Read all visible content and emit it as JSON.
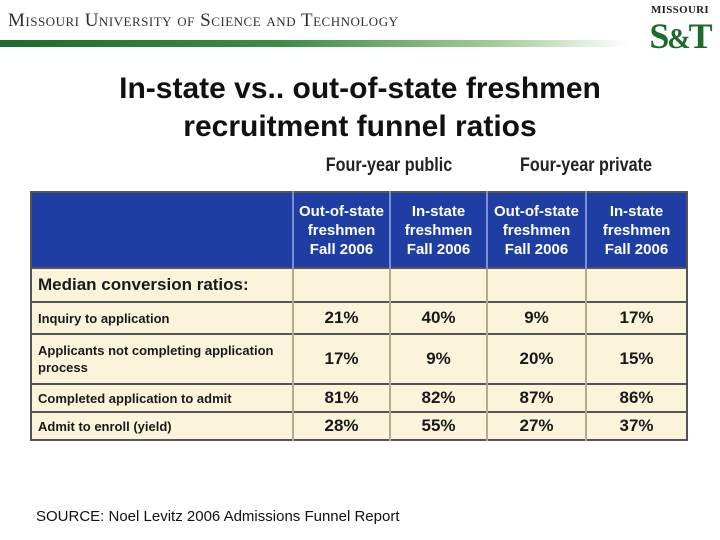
{
  "header": {
    "university": "Missouri University of Science and Technology",
    "logo_top": "MISSOURI",
    "logo_s": "S",
    "logo_amp": "&",
    "logo_t": "T",
    "accent_color": "#1d6b2c"
  },
  "slide": {
    "title_line1": "In-state vs.. out-of-state freshmen",
    "title_line2": "recruitment funnel ratios"
  },
  "table": {
    "group_public": "Four-year public",
    "group_private": "Four-year private",
    "columns": [
      {
        "l1": "Out-of-state",
        "l2": "freshmen",
        "l3": "Fall 2006"
      },
      {
        "l1": "In-state",
        "l2": "freshmen",
        "l3": "Fall 2006"
      },
      {
        "l1": "Out-of-state",
        "l2": "freshmen",
        "l3": "Fall 2006"
      },
      {
        "l1": "In-state",
        "l2": "freshmen",
        "l3": "Fall 2006"
      }
    ],
    "section_label": "Median conversion ratios:",
    "rows": [
      {
        "label": "Inquiry to application",
        "values": [
          "21%",
          "40%",
          "9%",
          "17%"
        ]
      },
      {
        "label": "Applicants not completing application process",
        "values": [
          "17%",
          "9%",
          "20%",
          "15%"
        ]
      },
      {
        "label": "Completed application to admit",
        "values": [
          "81%",
          "82%",
          "87%",
          "86%"
        ]
      },
      {
        "label": "Admit to enroll (yield)",
        "values": [
          "28%",
          "55%",
          "27%",
          "37%"
        ]
      }
    ],
    "header_color": "#1f3ea3",
    "body_color": "#fbf3da"
  },
  "footer": {
    "source": "SOURCE: Noel Levitz 2006 Admissions Funnel Report"
  }
}
